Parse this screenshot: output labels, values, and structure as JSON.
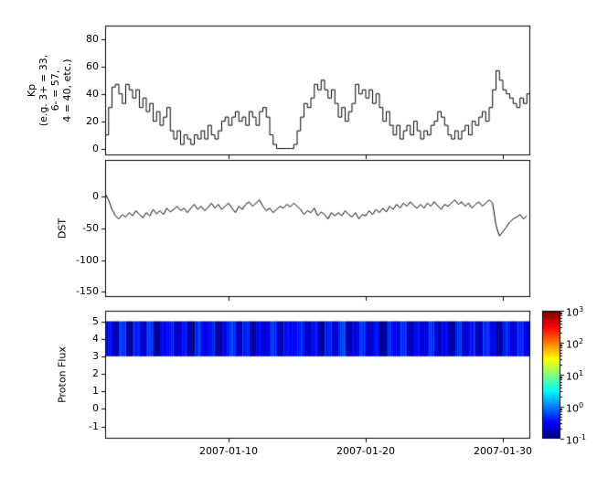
{
  "figure": {
    "background": "#ffffff"
  },
  "x_axis": {
    "ticks": [
      {
        "day": 10,
        "label": "2007-01-10"
      },
      {
        "day": 20,
        "label": "2007-01-20"
      },
      {
        "day": 30,
        "label": "2007-01-30"
      }
    ]
  },
  "colorbar": {
    "colormap": "jet",
    "log10_range": [
      -1,
      3
    ],
    "exponent_ticks": [
      3,
      2,
      1,
      0,
      -1
    ]
  },
  "chart_data": [
    {
      "type": "line",
      "name": "kp",
      "ylabel": "Kp\n(e.g. 3+ = 33,\n6- = 57,\n4 = 40, etc.)",
      "ylim": [
        -5,
        90
      ],
      "yticks": [
        0,
        20,
        40,
        60,
        80
      ],
      "step": true,
      "line_color": "#000000",
      "x_start_day": 1,
      "samples_per_day": 4,
      "values": [
        10,
        30,
        45,
        47,
        40,
        33,
        47,
        43,
        37,
        43,
        30,
        37,
        27,
        33,
        20,
        27,
        17,
        23,
        30,
        13,
        7,
        13,
        3,
        10,
        7,
        3,
        10,
        7,
        13,
        7,
        17,
        10,
        7,
        13,
        20,
        23,
        17,
        23,
        27,
        20,
        23,
        17,
        27,
        23,
        17,
        27,
        30,
        23,
        10,
        3,
        0,
        0,
        0,
        0,
        0,
        3,
        13,
        23,
        33,
        30,
        37,
        47,
        43,
        50,
        43,
        37,
        43,
        33,
        23,
        30,
        20,
        27,
        33,
        47,
        40,
        43,
        37,
        43,
        33,
        40,
        30,
        20,
        27,
        17,
        10,
        17,
        7,
        13,
        17,
        10,
        20,
        13,
        7,
        13,
        10,
        17,
        20,
        27,
        23,
        17,
        10,
        7,
        13,
        7,
        13,
        17,
        10,
        20,
        17,
        23,
        27,
        20,
        30,
        43,
        57,
        50,
        43,
        40,
        37,
        33,
        30,
        37,
        33,
        40
      ]
    },
    {
      "type": "line",
      "name": "dst",
      "ylabel": "DST",
      "ylim": [
        -158,
        58
      ],
      "yticks": [
        0,
        -50,
        -100,
        -150
      ],
      "step": false,
      "line_color": "#000000",
      "x_start_day": 1,
      "samples_per_day": 4,
      "values": [
        5,
        -5,
        -20,
        -30,
        -35,
        -28,
        -32,
        -25,
        -30,
        -22,
        -28,
        -33,
        -25,
        -30,
        -20,
        -27,
        -22,
        -28,
        -18,
        -24,
        -20,
        -15,
        -22,
        -18,
        -25,
        -18,
        -12,
        -20,
        -15,
        -22,
        -17,
        -10,
        -18,
        -12,
        -20,
        -15,
        -10,
        -18,
        -25,
        -15,
        -20,
        -12,
        -8,
        -15,
        -10,
        -5,
        -15,
        -22,
        -18,
        -25,
        -20,
        -15,
        -18,
        -12,
        -16,
        -10,
        -15,
        -20,
        -28,
        -22,
        -25,
        -18,
        -30,
        -24,
        -28,
        -35,
        -25,
        -30,
        -25,
        -30,
        -22,
        -28,
        -32,
        -25,
        -35,
        -28,
        -30,
        -22,
        -28,
        -20,
        -25,
        -18,
        -24,
        -15,
        -20,
        -12,
        -18,
        -10,
        -15,
        -8,
        -14,
        -18,
        -12,
        -18,
        -10,
        -15,
        -8,
        -14,
        -20,
        -12,
        -15,
        -10,
        -5,
        -12,
        -8,
        -15,
        -10,
        -18,
        -12,
        -8,
        -15,
        -10,
        -5,
        -10,
        -45,
        -62,
        -55,
        -48,
        -40,
        -35,
        -32,
        -28,
        -35,
        -30
      ]
    },
    {
      "type": "heatmap",
      "name": "proton_flux",
      "ylabel": "Proton Flux",
      "ylim": [
        -1.7,
        5.6
      ],
      "yticks": [
        5,
        4,
        3,
        2,
        1,
        0,
        -1
      ],
      "band_y": [
        3,
        5
      ],
      "colormap": "jet",
      "color_scale_log10": [
        -1,
        3
      ],
      "stripe_log10_values": [
        -0.5,
        -0.8,
        -0.3,
        -0.9,
        -0.4,
        -0.7,
        -0.25,
        -0.85,
        -0.55,
        -0.35,
        -0.75,
        -0.45,
        -0.95,
        -0.3,
        -0.6,
        -0.4,
        -0.8,
        -0.5,
        -0.27,
        -0.7,
        -0.35,
        -0.9,
        -0.5,
        -0.65,
        -0.3,
        -0.8,
        -0.42,
        -0.58,
        -0.33,
        -0.72,
        -0.48,
        -0.88,
        -0.38,
        -0.62,
        -0.28,
        -0.78,
        -0.52,
        -0.32,
        -0.68,
        -0.44,
        -0.92,
        -0.36,
        -0.56,
        -0.26,
        -0.82,
        -0.46,
        -0.66,
        -0.3,
        -0.74,
        -0.5,
        -0.86,
        -0.34,
        -0.64,
        -0.4,
        -0.76,
        -0.29,
        -0.54,
        -0.84,
        -0.37,
        -0.6,
        -0.31,
        -0.7
      ]
    }
  ]
}
